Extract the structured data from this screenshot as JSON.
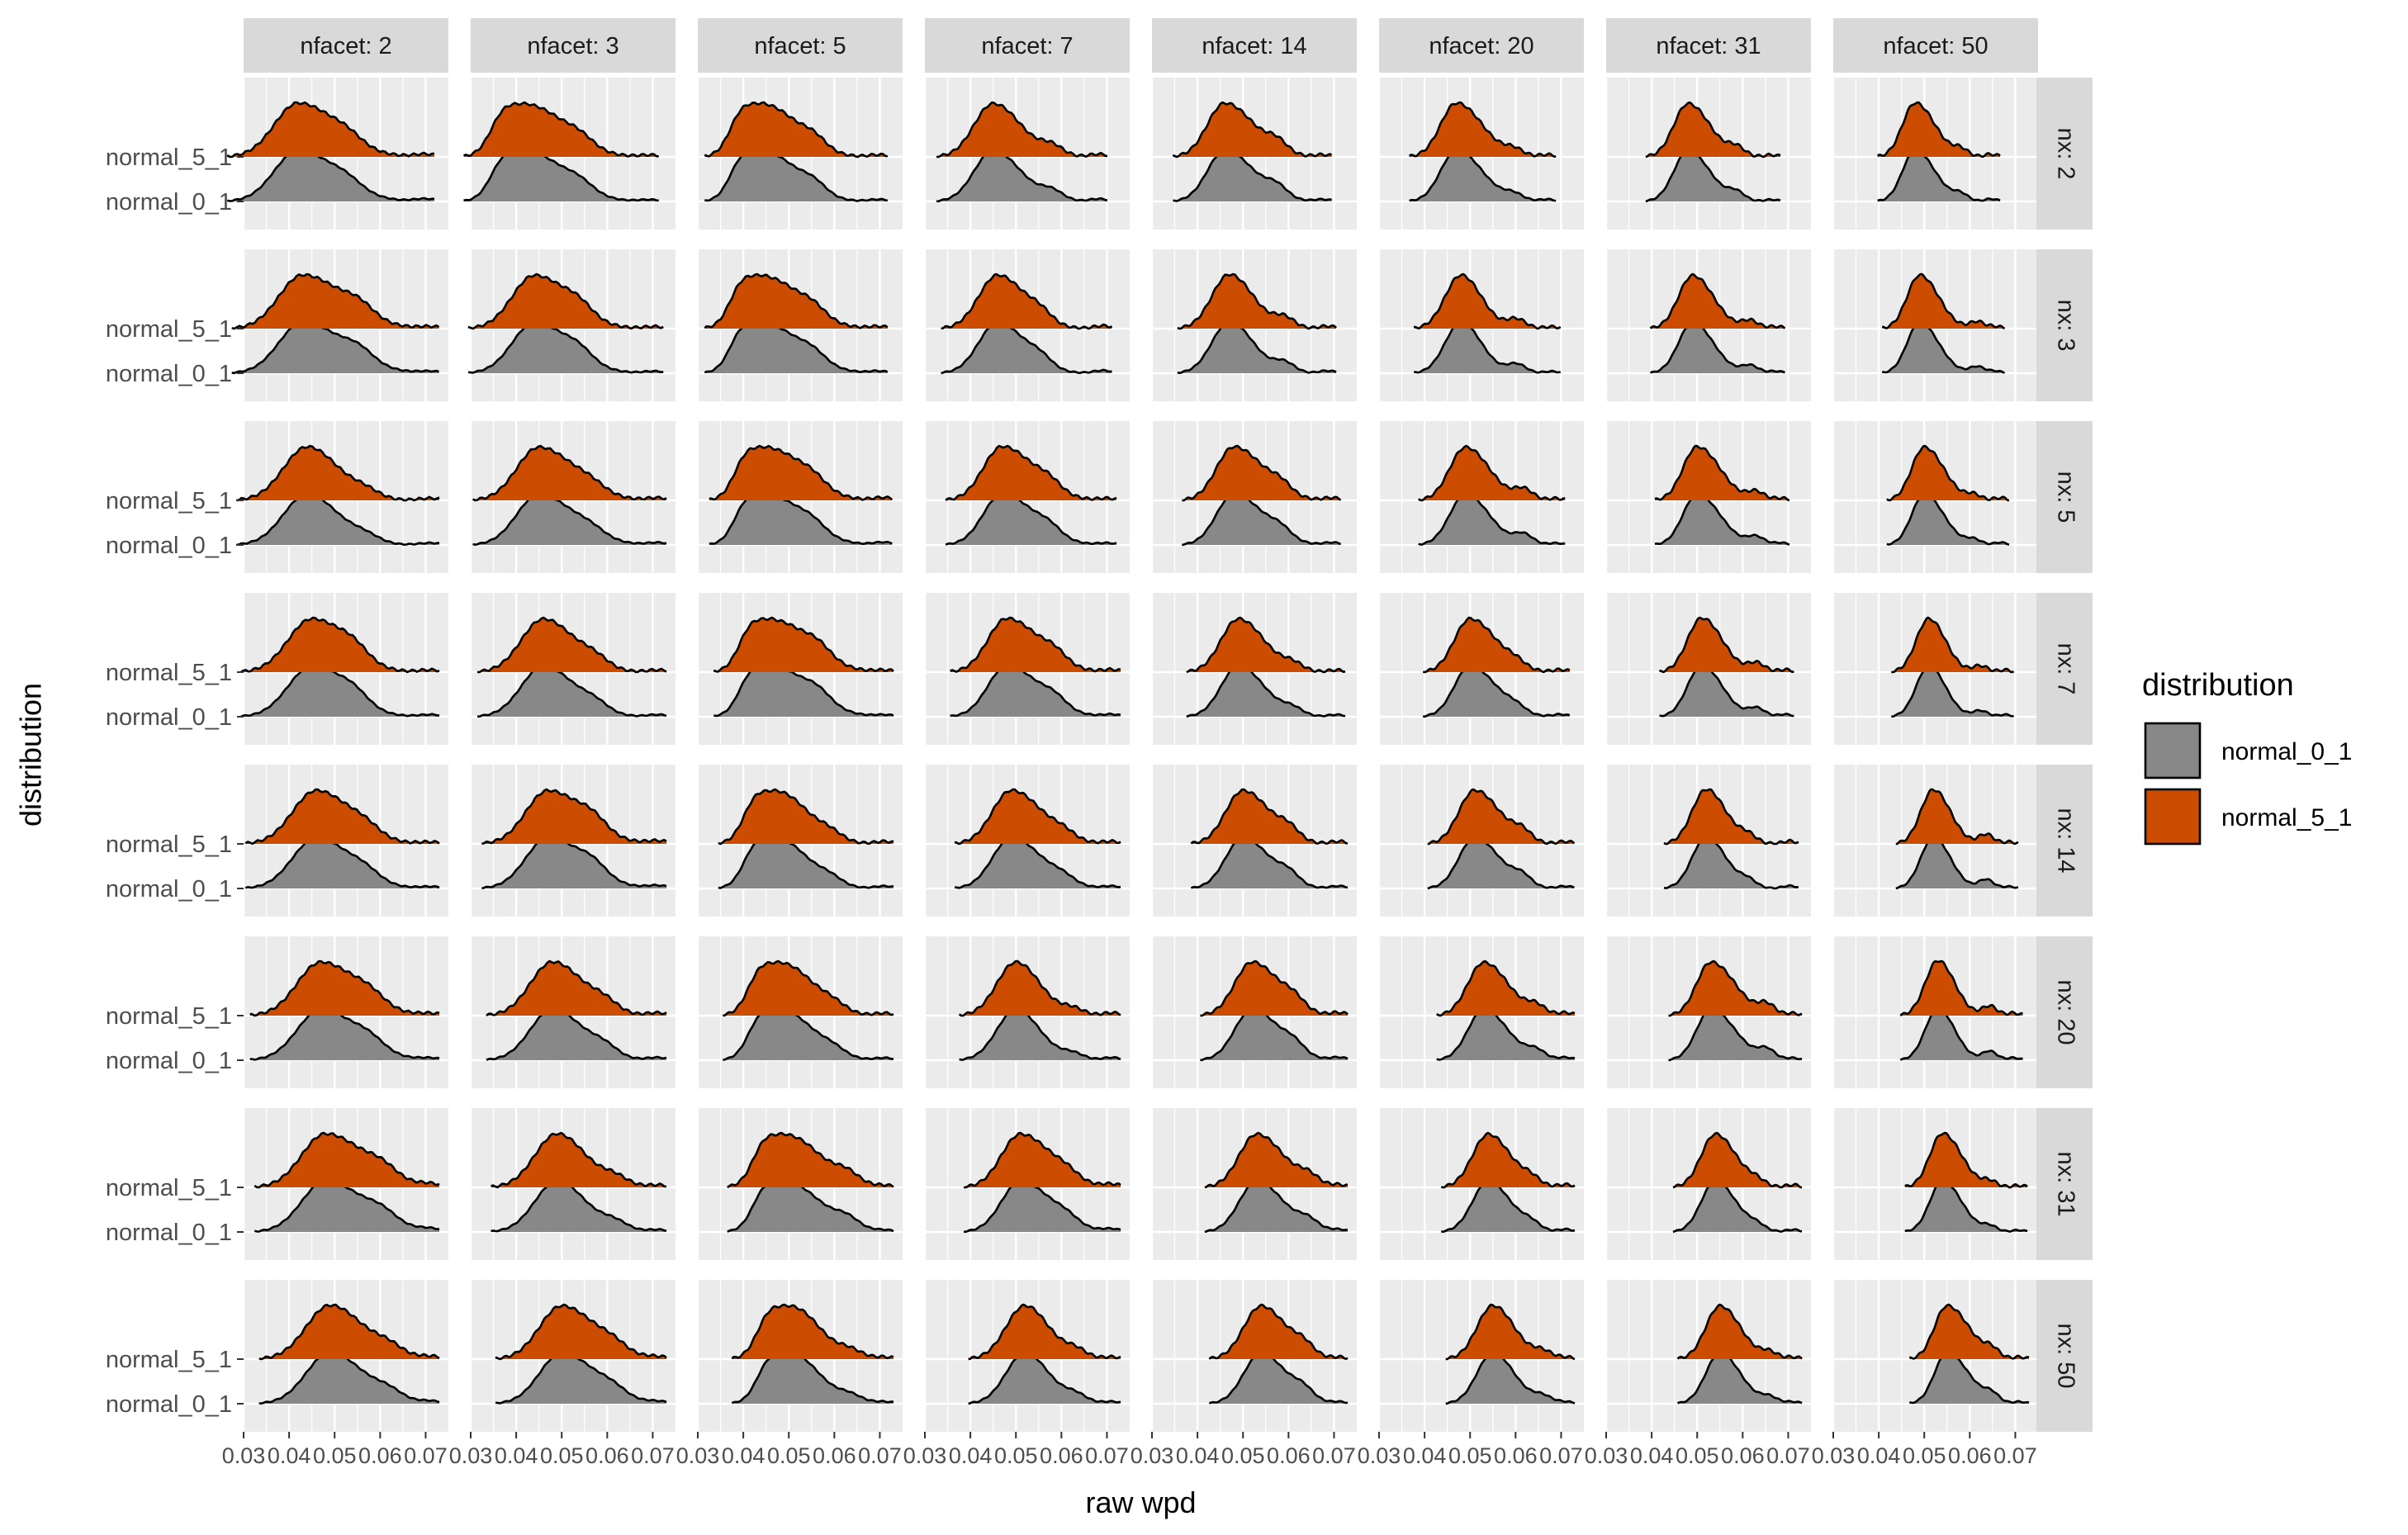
{
  "chart_data": {
    "type": "density-ridges-facet-grid",
    "title": "",
    "xlabel": "raw wpd",
    "ylabel": "distribution",
    "xlim": [
      0.03,
      0.075
    ],
    "x_ticks": [
      0.03,
      0.04,
      0.05,
      0.06,
      0.07
    ],
    "x_tick_labels": [
      "0.03",
      "0.04",
      "0.05",
      "0.06",
      "0.07"
    ],
    "y_categories": [
      "normal_5_1",
      "normal_0_1"
    ],
    "col_facet_labels": [
      "nfacet: 2",
      "nfacet: 3",
      "nfacet: 5",
      "nfacet: 7",
      "nfacet: 14",
      "nfacet: 20",
      "nfacet: 31",
      "nfacet: 50"
    ],
    "row_facet_labels": [
      "nx: 2",
      "nx: 3",
      "nx: 5",
      "nx: 7",
      "nx: 14",
      "nx: 20",
      "nx: 31",
      "nx: 50"
    ],
    "nfacet_values": [
      2,
      3,
      5,
      7,
      14,
      20,
      31,
      50
    ],
    "nx_values": [
      2,
      3,
      5,
      7,
      14,
      20,
      31,
      50
    ],
    "legend": {
      "title": "distribution",
      "placement": "right",
      "entries": [
        {
          "label": "normal_0_1",
          "color": "#888888"
        },
        {
          "label": "normal_5_1",
          "color": "#CC4C02"
        }
      ]
    },
    "colors": {
      "panel_bg": "#EBEBEB",
      "grid": "#FFFFFF",
      "strip_bg": "#D9D9D9",
      "outline": "#000000",
      "text": "#4D4D4D"
    },
    "grid": true,
    "density_peak_wpd": {
      "nx: 2": [
        0.042,
        0.043,
        0.045,
        0.045,
        0.046,
        0.047,
        0.048,
        0.048
      ],
      "nx: 3": [
        0.043,
        0.044,
        0.045,
        0.046,
        0.047,
        0.048,
        0.049,
        0.049
      ],
      "nx: 5": [
        0.044,
        0.045,
        0.046,
        0.047,
        0.048,
        0.049,
        0.05,
        0.05
      ],
      "nx: 7": [
        0.045,
        0.046,
        0.047,
        0.048,
        0.049,
        0.05,
        0.051,
        0.051
      ],
      "nx: 14": [
        0.046,
        0.047,
        0.048,
        0.049,
        0.05,
        0.051,
        0.052,
        0.052
      ],
      "nx: 20": [
        0.047,
        0.048,
        0.049,
        0.05,
        0.052,
        0.053,
        0.053,
        0.053
      ],
      "nx: 31": [
        0.048,
        0.049,
        0.05,
        0.051,
        0.053,
        0.054,
        0.054,
        0.054
      ],
      "nx: 50": [
        0.049,
        0.05,
        0.051,
        0.052,
        0.054,
        0.055,
        0.055,
        0.055
      ]
    }
  }
}
